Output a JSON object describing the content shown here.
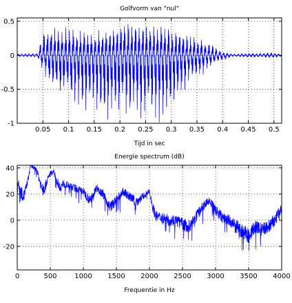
{
  "chart_data": [
    {
      "type": "line",
      "title": "Golfvorm van \"nul\"",
      "xlabel": "Tijd in sec",
      "ylabel": "",
      "xlim": [
        0,
        0.515
      ],
      "ylim": [
        -1,
        0.55
      ],
      "xticks": [
        0.05,
        0.1,
        0.15,
        0.2,
        0.25,
        0.3,
        0.35,
        0.4,
        0.45,
        0.5
      ],
      "xtick_labels": [
        "0.05",
        "0.1",
        "0.15",
        "0.2",
        "0.25",
        "0.3",
        "0.35",
        "0.4",
        "0.45",
        "0.5"
      ],
      "yticks": [
        -1,
        -0.5,
        0,
        0.5
      ],
      "ytick_labels": [
        "-1",
        "-0.5",
        "0",
        "0.5"
      ],
      "grid": true,
      "grid_style": "dotted",
      "color": "#0000ff",
      "series": [
        {
          "values_description_free": true,
          "envelope_t": [
            0,
            0.04,
            0.045,
            0.05,
            0.06,
            0.08,
            0.1,
            0.12,
            0.15,
            0.18,
            0.2,
            0.22,
            0.24,
            0.26,
            0.28,
            0.3,
            0.32,
            0.34,
            0.36,
            0.38,
            0.4,
            0.42,
            0.45,
            0.5,
            0.515
          ],
          "envelope_upper": [
            0.02,
            0.03,
            0.25,
            0.42,
            0.45,
            0.42,
            0.4,
            0.38,
            0.35,
            0.4,
            0.48,
            0.55,
            0.5,
            0.45,
            0.5,
            0.4,
            0.35,
            0.3,
            0.25,
            0.18,
            0.05,
            0.02,
            0.03,
            0.04,
            0.02
          ],
          "envelope_lower": [
            -0.02,
            -0.03,
            -0.15,
            -0.25,
            -0.4,
            -0.6,
            -0.7,
            -0.75,
            -0.85,
            -0.95,
            -0.92,
            -0.9,
            -0.95,
            -0.98,
            -1.0,
            -0.8,
            -0.55,
            -0.4,
            -0.3,
            -0.15,
            -0.08,
            -0.02,
            -0.03,
            -0.04,
            -0.02
          ]
        }
      ]
    },
    {
      "type": "line",
      "title": "Energie spectrum (dB)",
      "xlabel": "Frequentie in Hz",
      "ylabel": "",
      "xlim": [
        0,
        4000
      ],
      "ylim": [
        -38,
        42
      ],
      "xticks": [
        0,
        500,
        1000,
        1500,
        2000,
        2500,
        3000,
        3500,
        4000
      ],
      "xtick_labels": [
        "0",
        "500",
        "1000",
        "1500",
        "2000",
        "2500",
        "3000",
        "3500",
        "4000"
      ],
      "yticks": [
        -20,
        0,
        20,
        40
      ],
      "ytick_labels": [
        "-20",
        "0",
        "20",
        "40"
      ],
      "grid": true,
      "grid_style": "dotted",
      "color": "#0000ff",
      "series": [
        {
          "x": [
            0,
            50,
            100,
            150,
            180,
            200,
            250,
            300,
            350,
            400,
            450,
            500,
            550,
            600,
            650,
            700,
            800,
            900,
            1000,
            1100,
            1200,
            1300,
            1400,
            1500,
            1600,
            1700,
            1800,
            1900,
            2000,
            2050,
            2100,
            2200,
            2300,
            2400,
            2500,
            2600,
            2700,
            2800,
            2900,
            3000,
            3100,
            3200,
            3300,
            3400,
            3500,
            3600,
            3700,
            3800,
            3900,
            4000
          ],
          "y": [
            30,
            22,
            18,
            28,
            35,
            42,
            40,
            38,
            28,
            22,
            30,
            36,
            37,
            30,
            25,
            28,
            26,
            24,
            22,
            15,
            25,
            20,
            10,
            15,
            22,
            18,
            14,
            18,
            22,
            10,
            3,
            2,
            0,
            0,
            -3,
            -5,
            2,
            10,
            15,
            8,
            2,
            0,
            -5,
            -8,
            -12,
            -5,
            -8,
            -5,
            0,
            10
          ],
          "noise_band": [
            8,
            10,
            10,
            6,
            4,
            3,
            3,
            4,
            8,
            10,
            6,
            4,
            4,
            6,
            8,
            6,
            5,
            6,
            6,
            8,
            6,
            7,
            8,
            8,
            6,
            7,
            8,
            6,
            4,
            8,
            8,
            8,
            9,
            9,
            10,
            10,
            9,
            7,
            6,
            8,
            9,
            10,
            11,
            12,
            12,
            11,
            12,
            11,
            10,
            8
          ]
        }
      ]
    }
  ]
}
